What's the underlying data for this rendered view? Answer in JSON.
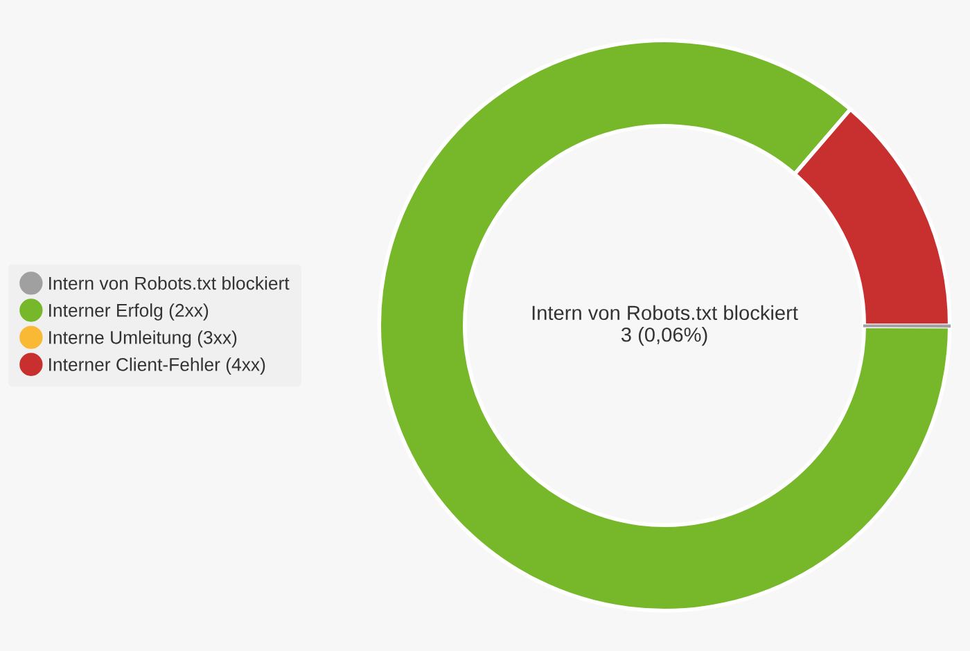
{
  "chart_data": {
    "type": "donut",
    "categories": [
      "Intern von Robots.txt blockiert",
      "Interner Erfolg (2xx)",
      "Interne Umleitung (3xx)",
      "Interner Client-Fehler (4xx)"
    ],
    "values": [
      0.06,
      86.24,
      0,
      13.7
    ],
    "colors": [
      "#a0a0a0",
      "#76b82a",
      "#f9b934",
      "#c8302f"
    ],
    "annotations": [
      "Intern von Robots.txt blockiert\n3 (0,06%)"
    ],
    "legend": "left"
  }
}
